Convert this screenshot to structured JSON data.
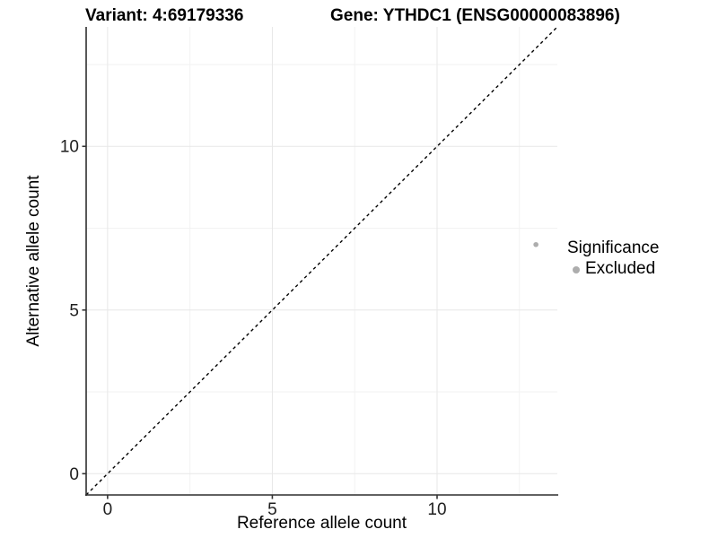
{
  "header": {
    "variant_title": "Variant: 4:69179336",
    "gene_title": "Gene: YTHDC1 (ENSG00000083896)"
  },
  "legend": {
    "title": "Significance",
    "items": [
      {
        "label": "Excluded",
        "color": "#adadad"
      }
    ]
  },
  "chart_data": {
    "type": "scatter",
    "xlabel": "Reference allele count",
    "ylabel": "Alternative allele count",
    "xlim": [
      -0.65,
      13.65
    ],
    "ylim": [
      -0.65,
      13.65
    ],
    "xticks": [
      0,
      5,
      10
    ],
    "yticks": [
      0,
      5,
      10
    ],
    "minor_ticks": [
      2.5,
      7.5,
      12.5
    ],
    "grid": true,
    "legend_position": "right",
    "series": [
      {
        "name": "Excluded",
        "color": "#adadad",
        "points": [
          {
            "x": 13,
            "y": 7
          }
        ]
      }
    ],
    "reference_line": {
      "type": "identity",
      "style": "dashed",
      "color": "#000000"
    }
  },
  "colors": {
    "axis_line": "#2e2e2e",
    "tick_mark": "#333333",
    "tick_label": "#202020",
    "grid_major": "#e7e7e7",
    "grid_minor": "#f2f2f2",
    "background": "#ffffff"
  }
}
